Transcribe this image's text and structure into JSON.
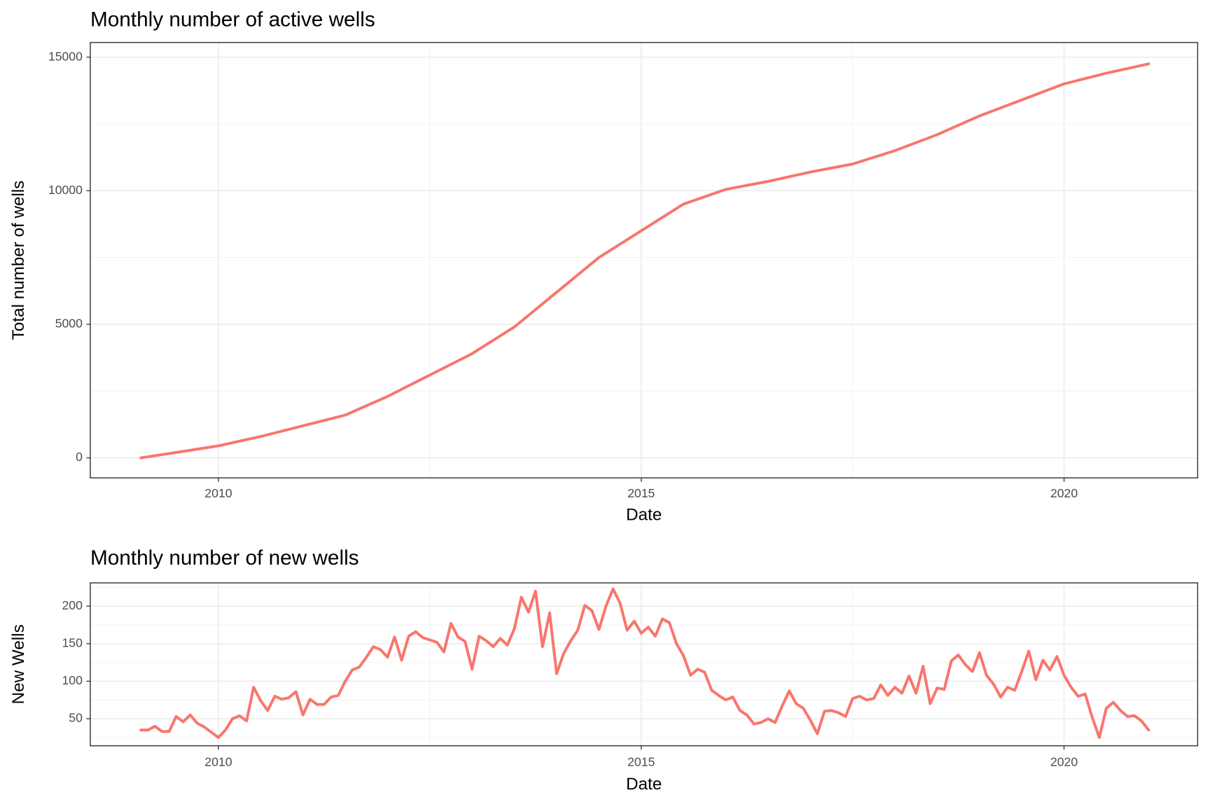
{
  "chart_data": [
    {
      "type": "line",
      "title": "Monthly number of active wells",
      "x_label": "Date",
      "y_label": "Total number of wells",
      "color": "#f8766d",
      "grid": true,
      "xlim": [
        2008.485,
        2021.58
      ],
      "xticks": [
        2010,
        2015,
        2020
      ],
      "ylim": [
        -750,
        15550
      ],
      "yticks": [
        0,
        5000,
        10000,
        15000
      ],
      "x": [
        2009.083,
        2009.5,
        2010.0,
        2010.5,
        2011.0,
        2011.5,
        2012.0,
        2012.5,
        2013.0,
        2013.5,
        2014.0,
        2014.5,
        2015.0,
        2015.5,
        2016.0,
        2016.5,
        2017.0,
        2017.5,
        2018.0,
        2018.5,
        2019.0,
        2019.5,
        2020.0,
        2020.5,
        2021.0
      ],
      "values": [
        0,
        200,
        450,
        800,
        1200,
        1600,
        2300,
        3100,
        3900,
        4900,
        6200,
        7500,
        8500,
        9500,
        10050,
        10350,
        10700,
        11000,
        11500,
        12100,
        12800,
        13400,
        14000,
        14400,
        14750
      ]
    },
    {
      "type": "line",
      "title": "Monthly number of new wells",
      "x_label": "Date",
      "y_label": "New Wells",
      "color": "#f8766d",
      "grid": true,
      "xlim": [
        2008.485,
        2021.58
      ],
      "xticks": [
        2010,
        2015,
        2020
      ],
      "ylim": [
        14,
        231
      ],
      "yticks": [
        50,
        100,
        150,
        200
      ],
      "x": [
        2009.083,
        2009.167,
        2009.25,
        2009.333,
        2009.417,
        2009.5,
        2009.583,
        2009.667,
        2009.75,
        2009.833,
        2009.917,
        2010.0,
        2010.083,
        2010.167,
        2010.25,
        2010.333,
        2010.417,
        2010.5,
        2010.583,
        2010.667,
        2010.75,
        2010.833,
        2010.917,
        2011.0,
        2011.083,
        2011.167,
        2011.25,
        2011.333,
        2011.417,
        2011.5,
        2011.583,
        2011.667,
        2011.75,
        2011.833,
        2011.917,
        2012.0,
        2012.083,
        2012.167,
        2012.25,
        2012.333,
        2012.417,
        2012.5,
        2012.583,
        2012.667,
        2012.75,
        2012.833,
        2012.917,
        2013.0,
        2013.083,
        2013.167,
        2013.25,
        2013.333,
        2013.417,
        2013.5,
        2013.583,
        2013.667,
        2013.75,
        2013.833,
        2013.917,
        2014.0,
        2014.083,
        2014.167,
        2014.25,
        2014.333,
        2014.417,
        2014.5,
        2014.583,
        2014.667,
        2014.75,
        2014.833,
        2014.917,
        2015.0,
        2015.083,
        2015.167,
        2015.25,
        2015.333,
        2015.417,
        2015.5,
        2015.583,
        2015.667,
        2015.75,
        2015.833,
        2015.917,
        2016.0,
        2016.083,
        2016.167,
        2016.25,
        2016.333,
        2016.417,
        2016.5,
        2016.583,
        2016.667,
        2016.75,
        2016.833,
        2016.917,
        2017.0,
        2017.083,
        2017.167,
        2017.25,
        2017.333,
        2017.417,
        2017.5,
        2017.583,
        2017.667,
        2017.75,
        2017.833,
        2017.917,
        2018.0,
        2018.083,
        2018.167,
        2018.25,
        2018.333,
        2018.417,
        2018.5,
        2018.583,
        2018.667,
        2018.75,
        2018.833,
        2018.917,
        2019.0,
        2019.083,
        2019.167,
        2019.25,
        2019.333,
        2019.417,
        2019.5,
        2019.583,
        2019.667,
        2019.75,
        2019.833,
        2019.917,
        2020.0,
        2020.083,
        2020.167,
        2020.25,
        2020.333,
        2020.417,
        2020.5,
        2020.583,
        2020.667,
        2020.75,
        2020.833,
        2020.917,
        2021.0
      ],
      "values": [
        35,
        35,
        40,
        33,
        33,
        53,
        46,
        55,
        44,
        39,
        32,
        25,
        35,
        50,
        54,
        47,
        92,
        74,
        61,
        80,
        76,
        78,
        86,
        55,
        76,
        69,
        69,
        79,
        81,
        100,
        115,
        119,
        132,
        146,
        142,
        132,
        159,
        128,
        160,
        166,
        158,
        155,
        152,
        139,
        177,
        159,
        153,
        116,
        160,
        154,
        146,
        157,
        148,
        170,
        212,
        192,
        220,
        146,
        191,
        110,
        137,
        154,
        168,
        201,
        194,
        169,
        200,
        223,
        204,
        168,
        180,
        164,
        172,
        160,
        183,
        178,
        150,
        134,
        108,
        116,
        112,
        88,
        81,
        75,
        79,
        61,
        55,
        43,
        45,
        50,
        45,
        67,
        87,
        70,
        64,
        48,
        30,
        60,
        61,
        58,
        53,
        77,
        80,
        75,
        77,
        95,
        81,
        92,
        84,
        107,
        84,
        120,
        70,
        91,
        89,
        127,
        135,
        122,
        113,
        138,
        108,
        96,
        79,
        92,
        88,
        113,
        140,
        102,
        128,
        115,
        133,
        108,
        92,
        80,
        83,
        52,
        25,
        64,
        72,
        61,
        53,
        54,
        47,
        35
      ]
    }
  ]
}
